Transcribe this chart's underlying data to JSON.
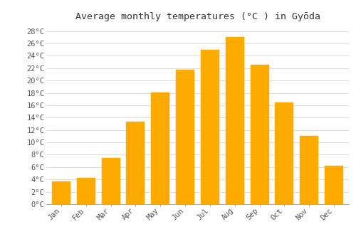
{
  "title": "Average monthly temperatures (°C ) in Gyōda",
  "months": [
    "Jan",
    "Feb",
    "Mar",
    "Apr",
    "May",
    "Jun",
    "Jul",
    "Aug",
    "Sep",
    "Oct",
    "Nov",
    "Dec"
  ],
  "temperatures": [
    3.7,
    4.3,
    7.5,
    13.3,
    18.1,
    21.8,
    25.0,
    27.1,
    22.5,
    16.5,
    11.1,
    6.2
  ],
  "bar_color": "#FFAA00",
  "bar_edge_color": "#FFAA00",
  "background_color": "#FFFFFF",
  "grid_color": "#DDDDDD",
  "ylim": [
    0,
    29
  ],
  "ytick_step": 2,
  "title_fontsize": 9.5,
  "tick_fontsize": 7.5,
  "font_family": "monospace"
}
